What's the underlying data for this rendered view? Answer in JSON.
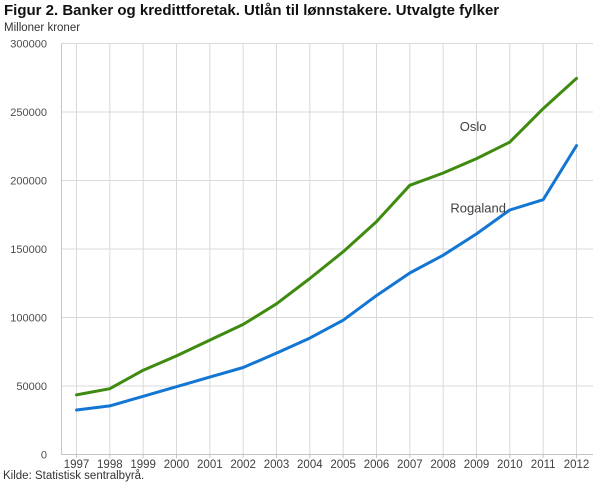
{
  "chart_data": {
    "type": "line",
    "title": "Figur 2. Banker og kredittforetak. Utlån til lønnstakere. Utvalgte fylker",
    "unit_label": "Milloner kroner",
    "x": [
      1997,
      1998,
      1999,
      2000,
      2001,
      2002,
      2003,
      2004,
      2005,
      2006,
      2007,
      2008,
      2009,
      2010,
      2011,
      2012
    ],
    "series": [
      {
        "name": "Oslo",
        "color": "#3e8b10",
        "values": [
          43500,
          48000,
          61500,
          72000,
          83500,
          95000,
          110000,
          128500,
          148000,
          170000,
          196500,
          205500,
          216000,
          228000,
          252500,
          274500
        ]
      },
      {
        "name": "Rogaland",
        "color": "#1276d2",
        "values": [
          32500,
          35500,
          42500,
          49500,
          56500,
          63500,
          74000,
          85000,
          98000,
          116000,
          132500,
          145500,
          161000,
          178500,
          186000,
          225500
        ]
      }
    ],
    "ylim": [
      0,
      300000
    ],
    "ytick_step": 50000,
    "yticks": [
      0,
      50000,
      100000,
      150000,
      200000,
      250000,
      300000
    ],
    "grid": true,
    "legend_position": "inline-labels",
    "annotations": [
      {
        "text": "Oslo",
        "x": 2008.9,
        "value": 236000
      },
      {
        "text": "Rogaland",
        "x": 2009.05,
        "value": 176500
      }
    ]
  },
  "footer": {
    "source": "Kilde: Statistisk sentralbyrå."
  },
  "colors": {
    "gridline": "#d9d9d9",
    "axis": "#c4c4c4",
    "title_text": "#111111",
    "tick_text": "#4d4d4d"
  }
}
